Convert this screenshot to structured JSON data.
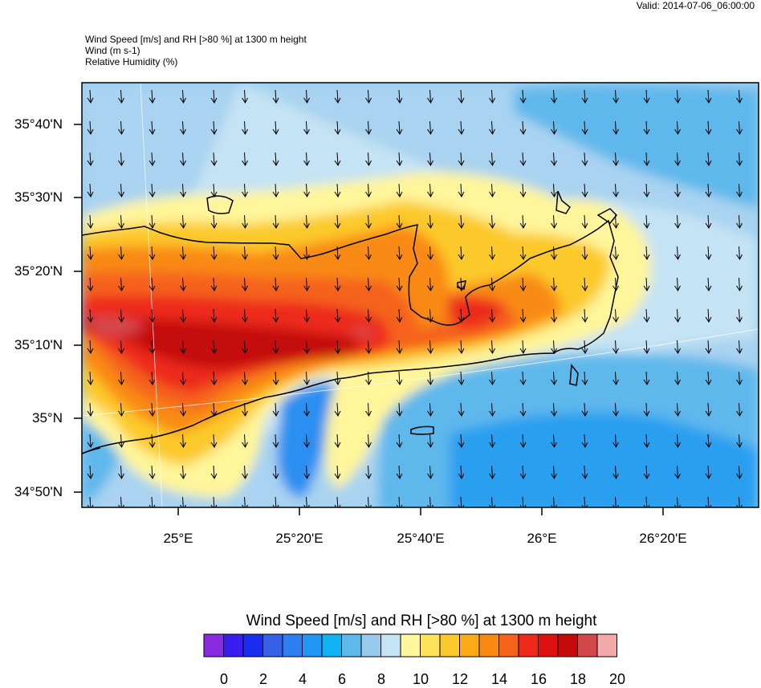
{
  "valid": "Valid: 2014-07-06_06:00:00",
  "header": [
    "Wind Speed [m/s] and RH [>80 %] at 1300 m height",
    "Wind   (m s-1)",
    "Relative Humidity   (%)"
  ],
  "lat_labels": [
    "35°40'N",
    "35°30'N",
    "35°20'N",
    "35°10'N",
    "35°N",
    "34°50'N"
  ],
  "lon_labels": [
    "25°E",
    "25°20'E",
    "25°40'E",
    "26°E",
    "26°20'E"
  ],
  "colorbar": {
    "title": "Wind Speed [m/s] and RH [>80 %] at 1300 m height",
    "labels": [
      "0",
      "2",
      "4",
      "6",
      "8",
      "10",
      "12",
      "14",
      "16",
      "18",
      "20"
    ],
    "colors": [
      "#8a2be2",
      "#3a1ef0",
      "#1a2ef0",
      "#3460e6",
      "#2c7ff0",
      "#2196f3",
      "#12b3f5",
      "#5fb8ec",
      "#98ccee",
      "#c4e3f4",
      "#fff59a",
      "#fde25a",
      "#fcc92c",
      "#fbaa18",
      "#f98a12",
      "#f5621a",
      "#ed2a1a",
      "#df1010",
      "#c40a0a",
      "#d4474b",
      "#f4aaaa"
    ]
  },
  "wind_direction": "north-to-south (southward arrows throughout)"
}
